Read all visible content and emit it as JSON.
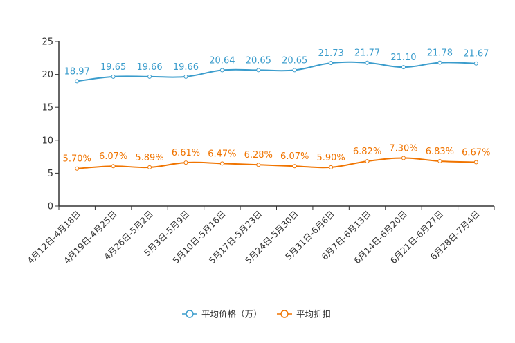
{
  "chart_data": {
    "type": "line",
    "title": "",
    "xlabel": "",
    "ylabel": "",
    "ylim": [
      0,
      25
    ],
    "yticks": [
      0,
      5,
      10,
      15,
      20,
      25
    ],
    "grid": false,
    "legend_position": "bottom-center",
    "categories": [
      "4月12日-4月18日",
      "4月19日-4月25日",
      "4月26日-5月2日",
      "5月3日-5月9日",
      "5月10日-5月16日",
      "5月17日-5月23日",
      "5月24日-5月30日",
      "5月31日-6月6日",
      "6月7日-6月13日",
      "6月14日-6月20日",
      "6月21日-6月27日",
      "6月28日-7月4日"
    ],
    "series": [
      {
        "name": "平均价格（万）",
        "color": "#3a9ccc",
        "values": [
          18.97,
          19.65,
          19.66,
          19.66,
          20.64,
          20.65,
          20.65,
          21.73,
          21.77,
          21.1,
          21.78,
          21.67
        ],
        "labels": [
          "18.97",
          "19.65",
          "19.66",
          "19.66",
          "20.64",
          "20.65",
          "20.65",
          "21.73",
          "21.77",
          "21.10",
          "21.78",
          "21.67"
        ]
      },
      {
        "name": "平均折扣",
        "color": "#f07400",
        "values": [
          5.7,
          6.07,
          5.89,
          6.61,
          6.47,
          6.28,
          6.07,
          5.9,
          6.82,
          7.3,
          6.83,
          6.67
        ],
        "labels": [
          "5.70%",
          "6.07%",
          "5.89%",
          "6.61%",
          "6.47%",
          "6.28%",
          "6.07%",
          "5.90%",
          "6.82%",
          "7.30%",
          "6.83%",
          "6.67%"
        ]
      }
    ]
  }
}
